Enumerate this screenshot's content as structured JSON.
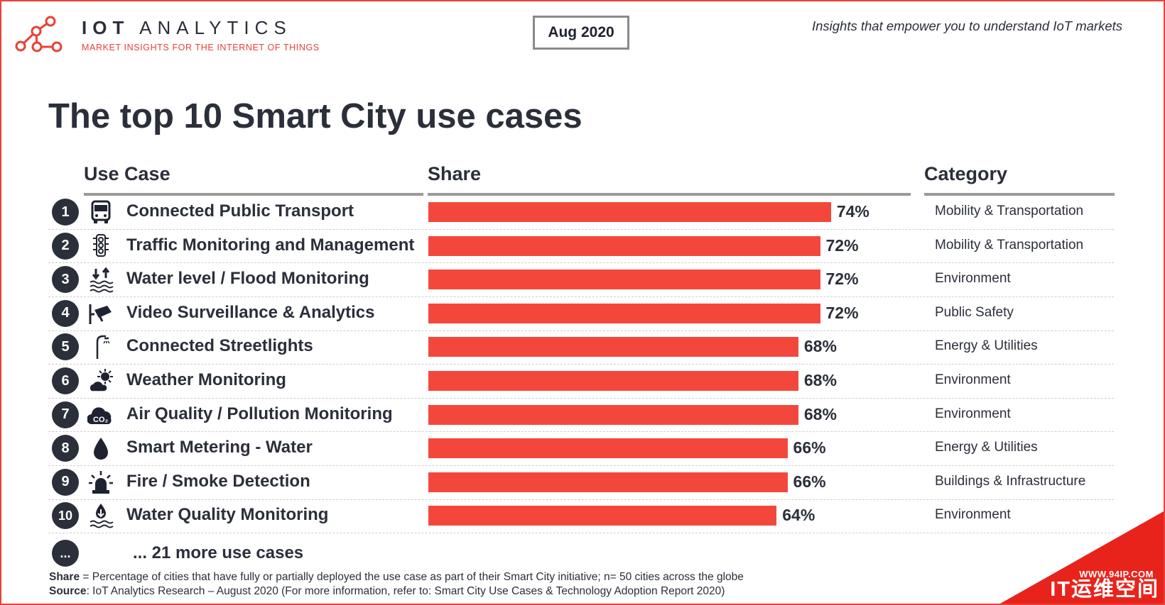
{
  "header": {
    "brand_prefix": "IOT",
    "brand_suffix": "ANALYTICS",
    "tagline": "MARKET INSIGHTS FOR THE INTERNET OF THINGS",
    "date": "Aug 2020",
    "slogan": "Insights that empower you to understand IoT markets"
  },
  "chart_data": {
    "type": "bar",
    "orientation": "horizontal",
    "title": "The top 10 Smart City use cases",
    "columns": {
      "use_case": "Use Case",
      "share": "Share",
      "category": "Category"
    },
    "xlim": [
      0,
      100
    ],
    "value_unit": "%",
    "rows": [
      {
        "rank": "1",
        "icon": "bus-icon",
        "label": "Connected Public Transport",
        "value": 74,
        "value_label": "74%",
        "category": "Mobility & Transportation"
      },
      {
        "rank": "2",
        "icon": "traffic-light-icon",
        "label": "Traffic Monitoring and Management",
        "value": 72,
        "value_label": "72%",
        "category": "Mobility & Transportation"
      },
      {
        "rank": "3",
        "icon": "water-level-icon",
        "label": "Water level / Flood Monitoring",
        "value": 72,
        "value_label": "72%",
        "category": "Environment"
      },
      {
        "rank": "4",
        "icon": "security-camera-icon",
        "label": "Video Surveillance & Analytics",
        "value": 72,
        "value_label": "72%",
        "category": "Public Safety"
      },
      {
        "rank": "5",
        "icon": "streetlight-icon",
        "label": "Connected Streetlights",
        "value": 68,
        "value_label": "68%",
        "category": "Energy & Utilities"
      },
      {
        "rank": "6",
        "icon": "weather-icon",
        "label": "Weather Monitoring",
        "value": 68,
        "value_label": "68%",
        "category": "Environment"
      },
      {
        "rank": "7",
        "icon": "co2-cloud-icon",
        "label": "Air Quality / Pollution Monitoring",
        "value": 68,
        "value_label": "68%",
        "category": "Environment"
      },
      {
        "rank": "8",
        "icon": "water-drop-icon",
        "label": "Smart Metering - Water",
        "value": 66,
        "value_label": "66%",
        "category": "Energy & Utilities"
      },
      {
        "rank": "9",
        "icon": "alarm-light-icon",
        "label": "Fire / Smoke Detection",
        "value": 66,
        "value_label": "66%",
        "category": "Buildings & Infrastructure"
      },
      {
        "rank": "10",
        "icon": "water-quality-icon",
        "label": "Water Quality Monitoring",
        "value": 64,
        "value_label": "64%",
        "category": "Environment"
      }
    ],
    "more": {
      "rank": "...",
      "label": "... 21 more use cases"
    }
  },
  "footnote": {
    "share_term": "Share",
    "share_text": " = Percentage of cities that have fully or partially deployed the use case as part of their Smart City initiative; n= 50 cities across the globe",
    "source_term": "Source",
    "source_text": ": IoT Analytics Research – August 2020 (For more information, refer to: Smart City Use Cases & Technology Adoption Report 2020)"
  },
  "watermark": {
    "url": "WWW.94IP.COM",
    "brand": "IT运维空间"
  },
  "colors": {
    "accent": "#f4473c",
    "text": "#2b2f3a",
    "rule": "#9a9a9a"
  }
}
